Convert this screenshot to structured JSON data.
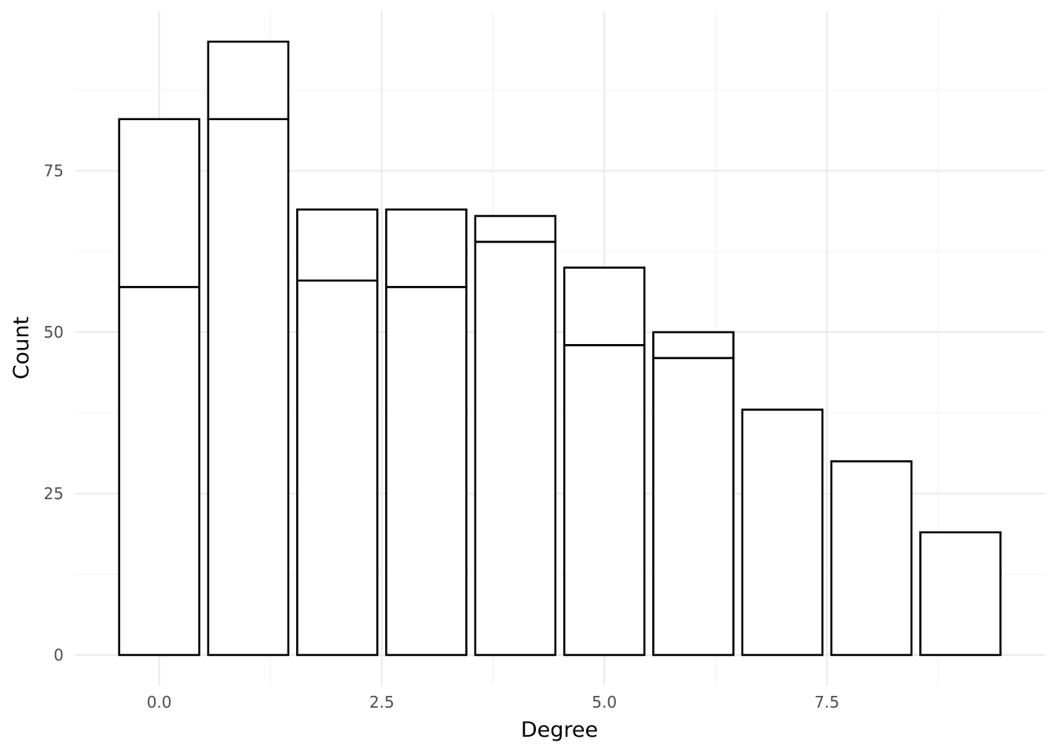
{
  "chart_data": {
    "type": "bar",
    "stacked": true,
    "xlabel": "Degree",
    "ylabel": "Count",
    "x": [
      0,
      1,
      2,
      3,
      4,
      5,
      6,
      7,
      8,
      9
    ],
    "series": [
      {
        "values": [
          57,
          83,
          58,
          57,
          64,
          48,
          46,
          38,
          30,
          19
        ]
      },
      {
        "values": [
          26,
          12,
          11,
          12,
          4,
          12,
          4,
          0,
          0,
          0
        ]
      }
    ],
    "totals": [
      83,
      95,
      69,
      69,
      68,
      60,
      50,
      38,
      30,
      19
    ],
    "xlim": [
      -0.95,
      9.95
    ],
    "ylim": [
      -4.75,
      99.75
    ],
    "xticks": [
      0,
      2.5,
      5,
      7.5
    ],
    "xtick_labels": [
      "0.0",
      "2.5",
      "5.0",
      "7.5"
    ],
    "yticks": [
      0,
      25,
      50,
      75
    ],
    "ytick_labels": [
      "0",
      "25",
      "50",
      "75"
    ],
    "bar_fill": "#ffffff",
    "bar_outline": "#000000",
    "grid": true,
    "legend": "none"
  }
}
